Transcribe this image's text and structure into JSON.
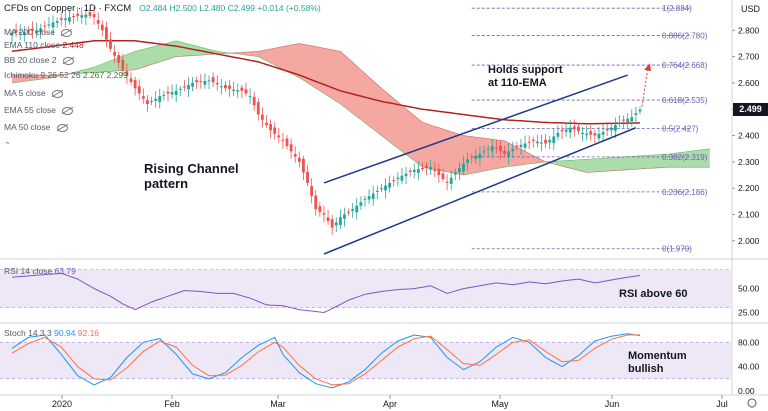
{
  "header": {
    "symbol": "CFDs on Copper · 1D · FXCM",
    "ohlc": "O2.484  H2.500  L2.480  C2.499  +0.014 (+0.58%)"
  },
  "legend": [
    {
      "label": "MA 200 close",
      "value": ""
    },
    {
      "label": "EMA 110 close",
      "value": "2.448"
    },
    {
      "label": "BB 20 close 2",
      "value": ""
    },
    {
      "label": "Ichimoku 9 26 52 26",
      "value": "2.267  2.299"
    },
    {
      "label": "MA 5 close",
      "value": ""
    },
    {
      "label": "EMA 55 close",
      "value": ""
    },
    {
      "label": "MA 50 close",
      "value": ""
    }
  ],
  "currency": "USD",
  "price_tag": "2.499",
  "annotations": {
    "holds_support": "Holds support\nat 110-EMA",
    "rising_channel": "Rising Channel\npattern",
    "rsi_note": "RSI above 60",
    "momentum_note": "Momentum\nbullish"
  },
  "colors": {
    "up": "#26a69a",
    "down": "#ef5350",
    "ema110": "#b22222",
    "cloud_bull": "#8fd18f",
    "cloud_bear": "#f28b82",
    "channel": "#1e3a8a",
    "fib": "#6b5fb3",
    "rsi": "#7e57c2",
    "stoch_k": "#2196f3",
    "stoch_d": "#ff7043"
  },
  "chart_data": [
    {
      "type": "candlestick",
      "title": "CFDs on Copper · 1D · FXCM",
      "x_tick_labels": [
        "2020",
        "Feb",
        "Mar",
        "Apr",
        "May",
        "Jun",
        "Jul"
      ],
      "y_tick_labels": [
        "2.800",
        "2.700",
        "2.600",
        "2.500",
        "2.400",
        "2.300",
        "2.200",
        "2.100",
        "2.000"
      ],
      "ylim": [
        1.95,
        2.9
      ],
      "fib_levels": [
        {
          "ratio": "1",
          "value": 2.884
        },
        {
          "ratio": "0.886",
          "value": 2.78
        },
        {
          "ratio": "0.764",
          "value": 2.668
        },
        {
          "ratio": "0.618",
          "value": 2.535
        },
        {
          "ratio": "0.5",
          "value": 2.427
        },
        {
          "ratio": "0.382",
          "value": 2.319
        },
        {
          "ratio": "0.236",
          "value": 2.186
        },
        {
          "ratio": "0",
          "value": 1.97
        }
      ],
      "close_anchors": [
        [
          0,
          2.79
        ],
        [
          6,
          2.8
        ],
        [
          10,
          2.83
        ],
        [
          14,
          2.85
        ],
        [
          18,
          2.86
        ],
        [
          20,
          2.85
        ],
        [
          22,
          2.8
        ],
        [
          24,
          2.73
        ],
        [
          27,
          2.65
        ],
        [
          30,
          2.58
        ],
        [
          33,
          2.52
        ],
        [
          36,
          2.55
        ],
        [
          40,
          2.57
        ],
        [
          44,
          2.6
        ],
        [
          48,
          2.61
        ],
        [
          52,
          2.58
        ],
        [
          56,
          2.57
        ],
        [
          58,
          2.55
        ],
        [
          60,
          2.48
        ],
        [
          63,
          2.42
        ],
        [
          66,
          2.38
        ],
        [
          70,
          2.3
        ],
        [
          72,
          2.22
        ],
        [
          74,
          2.12
        ],
        [
          76,
          2.1
        ],
        [
          78,
          2.05
        ],
        [
          80,
          2.09
        ],
        [
          83,
          2.12
        ],
        [
          86,
          2.16
        ],
        [
          90,
          2.2
        ],
        [
          94,
          2.24
        ],
        [
          98,
          2.27
        ],
        [
          102,
          2.28
        ],
        [
          106,
          2.22
        ],
        [
          108,
          2.26
        ],
        [
          111,
          2.31
        ],
        [
          114,
          2.33
        ],
        [
          117,
          2.36
        ],
        [
          120,
          2.33
        ],
        [
          123,
          2.36
        ],
        [
          127,
          2.38
        ],
        [
          130,
          2.37
        ],
        [
          133,
          2.41
        ],
        [
          136,
          2.43
        ],
        [
          139,
          2.41
        ],
        [
          142,
          2.4
        ],
        [
          145,
          2.42
        ],
        [
          148,
          2.45
        ],
        [
          151,
          2.47
        ],
        [
          153,
          2.499
        ]
      ],
      "ema110_anchors": [
        [
          0,
          2.72
        ],
        [
          10,
          2.74
        ],
        [
          20,
          2.76
        ],
        [
          30,
          2.76
        ],
        [
          40,
          2.74
        ],
        [
          50,
          2.71
        ],
        [
          60,
          2.68
        ],
        [
          70,
          2.63
        ],
        [
          80,
          2.57
        ],
        [
          90,
          2.53
        ],
        [
          100,
          2.5
        ],
        [
          110,
          2.48
        ],
        [
          120,
          2.46
        ],
        [
          130,
          2.45
        ],
        [
          140,
          2.445
        ],
        [
          153,
          2.448
        ]
      ],
      "cloud_a_anchors": [
        [
          0,
          2.6
        ],
        [
          10,
          2.62
        ],
        [
          20,
          2.66
        ],
        [
          30,
          2.72
        ],
        [
          40,
          2.76
        ],
        [
          50,
          2.72
        ],
        [
          60,
          2.7
        ],
        [
          70,
          2.62
        ],
        [
          80,
          2.52
        ],
        [
          90,
          2.4
        ],
        [
          100,
          2.28
        ],
        [
          110,
          2.25
        ],
        [
          120,
          2.28
        ],
        [
          130,
          2.3
        ],
        [
          140,
          2.31
        ],
        [
          150,
          2.32
        ],
        [
          160,
          2.33
        ],
        [
          170,
          2.35
        ]
      ],
      "cloud_b_anchors": [
        [
          0,
          2.63
        ],
        [
          10,
          2.63
        ],
        [
          20,
          2.64
        ],
        [
          30,
          2.65
        ],
        [
          40,
          2.7
        ],
        [
          50,
          2.71
        ],
        [
          60,
          2.72
        ],
        [
          70,
          2.75
        ],
        [
          80,
          2.72
        ],
        [
          90,
          2.58
        ],
        [
          100,
          2.45
        ],
        [
          110,
          2.4
        ],
        [
          120,
          2.38
        ],
        [
          130,
          2.3
        ],
        [
          140,
          2.26
        ],
        [
          150,
          2.27
        ],
        [
          160,
          2.28
        ],
        [
          170,
          2.28
        ]
      ],
      "channel_upper": [
        [
          76,
          2.22
        ],
        [
          150,
          2.63
        ]
      ],
      "channel_lower": [
        [
          76,
          1.95
        ],
        [
          152,
          2.43
        ]
      ]
    },
    {
      "type": "line",
      "title": "RSI 14 close",
      "value_label": "63.79",
      "y_tick_labels": [
        "50.00",
        "25.00"
      ],
      "ylim": [
        15,
        80
      ],
      "band": [
        30,
        70
      ],
      "anchors": [
        [
          0,
          62
        ],
        [
          6,
          64
        ],
        [
          12,
          66
        ],
        [
          16,
          60
        ],
        [
          20,
          50
        ],
        [
          24,
          42
        ],
        [
          27,
          34
        ],
        [
          30,
          28
        ],
        [
          34,
          36
        ],
        [
          38,
          42
        ],
        [
          42,
          48
        ],
        [
          46,
          47
        ],
        [
          50,
          45
        ],
        [
          54,
          45
        ],
        [
          58,
          40
        ],
        [
          62,
          33
        ],
        [
          66,
          32
        ],
        [
          70,
          28
        ],
        [
          74,
          26
        ],
        [
          76,
          25
        ],
        [
          78,
          29
        ],
        [
          82,
          38
        ],
        [
          86,
          44
        ],
        [
          90,
          47
        ],
        [
          94,
          49
        ],
        [
          98,
          50
        ],
        [
          102,
          53
        ],
        [
          106,
          45
        ],
        [
          110,
          50
        ],
        [
          114,
          53
        ],
        [
          118,
          56
        ],
        [
          122,
          54
        ],
        [
          126,
          57
        ],
        [
          130,
          55
        ],
        [
          134,
          58
        ],
        [
          138,
          60
        ],
        [
          142,
          56
        ],
        [
          146,
          59
        ],
        [
          150,
          62
        ],
        [
          153,
          63.79
        ]
      ]
    },
    {
      "type": "line",
      "title": "Stoch 14 3 3",
      "value_labels": [
        "90.94",
        "92.16"
      ],
      "y_tick_labels": [
        "80.00",
        "40.00",
        "0.00"
      ],
      "ylim": [
        -5,
        110
      ],
      "band": [
        20,
        80
      ],
      "k_anchors": [
        [
          0,
          70
        ],
        [
          4,
          88
        ],
        [
          8,
          92
        ],
        [
          12,
          60
        ],
        [
          16,
          25
        ],
        [
          20,
          10
        ],
        [
          24,
          22
        ],
        [
          28,
          55
        ],
        [
          32,
          80
        ],
        [
          36,
          86
        ],
        [
          40,
          60
        ],
        [
          44,
          28
        ],
        [
          48,
          20
        ],
        [
          52,
          30
        ],
        [
          56,
          55
        ],
        [
          60,
          75
        ],
        [
          64,
          88
        ],
        [
          66,
          60
        ],
        [
          70,
          30
        ],
        [
          74,
          12
        ],
        [
          78,
          5
        ],
        [
          82,
          15
        ],
        [
          86,
          35
        ],
        [
          90,
          62
        ],
        [
          94,
          82
        ],
        [
          98,
          92
        ],
        [
          102,
          88
        ],
        [
          106,
          55
        ],
        [
          110,
          35
        ],
        [
          114,
          48
        ],
        [
          118,
          72
        ],
        [
          122,
          88
        ],
        [
          126,
          80
        ],
        [
          130,
          55
        ],
        [
          134,
          40
        ],
        [
          138,
          58
        ],
        [
          142,
          82
        ],
        [
          146,
          90
        ],
        [
          150,
          94
        ],
        [
          153,
          90.94
        ]
      ],
      "d_anchors": [
        [
          0,
          62
        ],
        [
          4,
          78
        ],
        [
          8,
          88
        ],
        [
          12,
          72
        ],
        [
          16,
          40
        ],
        [
          20,
          20
        ],
        [
          24,
          18
        ],
        [
          28,
          38
        ],
        [
          32,
          65
        ],
        [
          36,
          82
        ],
        [
          40,
          72
        ],
        [
          44,
          42
        ],
        [
          48,
          25
        ],
        [
          52,
          26
        ],
        [
          56,
          42
        ],
        [
          60,
          64
        ],
        [
          64,
          80
        ],
        [
          66,
          72
        ],
        [
          70,
          42
        ],
        [
          74,
          20
        ],
        [
          78,
          10
        ],
        [
          82,
          12
        ],
        [
          86,
          28
        ],
        [
          90,
          50
        ],
        [
          94,
          72
        ],
        [
          98,
          86
        ],
        [
          102,
          90
        ],
        [
          106,
          68
        ],
        [
          110,
          45
        ],
        [
          114,
          42
        ],
        [
          118,
          60
        ],
        [
          122,
          80
        ],
        [
          126,
          84
        ],
        [
          130,
          65
        ],
        [
          134,
          48
        ],
        [
          138,
          50
        ],
        [
          142,
          70
        ],
        [
          146,
          85
        ],
        [
          150,
          92
        ],
        [
          153,
          92.16
        ]
      ]
    }
  ]
}
